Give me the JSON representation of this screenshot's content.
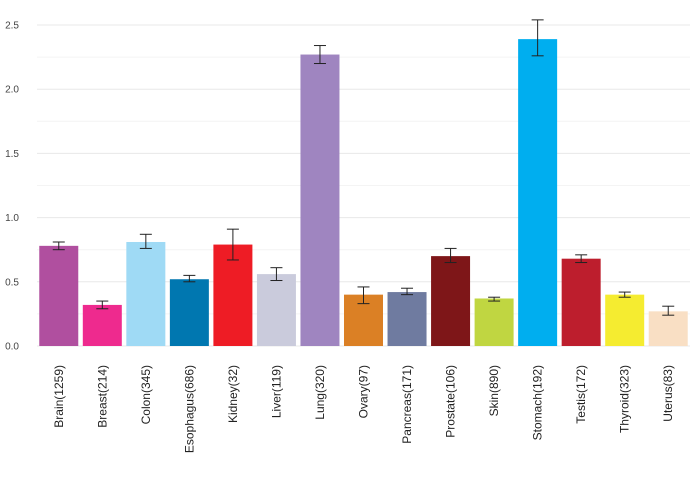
{
  "chart_data": {
    "type": "bar",
    "title": "",
    "xlabel": "",
    "ylabel": "",
    "ylim": [
      0,
      2.6
    ],
    "yticks": [
      "0.0",
      "0.5",
      "1.0",
      "1.5",
      "2.0",
      "2.5"
    ],
    "grid": true,
    "legend": "none",
    "categories": [
      "Brain(1259)",
      "Breast(214)",
      "Colon(345)",
      "Esophagus(686)",
      "Kidney(32)",
      "Liver(119)",
      "Lung(320)",
      "Ovary(97)",
      "Pancreas(171)",
      "Prostate(106)",
      "Skin(890)",
      "Stomach(192)",
      "Testis(172)",
      "Thyroid(323)",
      "Uterus(83)"
    ],
    "values": [
      0.78,
      0.32,
      0.81,
      0.52,
      0.79,
      0.56,
      2.27,
      0.4,
      0.42,
      0.7,
      0.37,
      2.39,
      0.68,
      0.4,
      0.27
    ],
    "error_low": [
      0.75,
      0.29,
      0.76,
      0.5,
      0.67,
      0.51,
      2.2,
      0.33,
      0.4,
      0.65,
      0.35,
      2.26,
      0.65,
      0.38,
      0.24
    ],
    "error_high": [
      0.81,
      0.35,
      0.87,
      0.55,
      0.91,
      0.61,
      2.34,
      0.46,
      0.45,
      0.76,
      0.38,
      2.54,
      0.71,
      0.42,
      0.31
    ],
    "colors": [
      "#b04f9f",
      "#ee2a8e",
      "#9fdaf5",
      "#0077b0",
      "#ee1c25",
      "#cacbdc",
      "#9f85c0",
      "#db8025",
      "#6f7ba0",
      "#7e1618",
      "#c0d641",
      "#00aeef",
      "#bd1e2d",
      "#f5ec30",
      "#f9dfc4"
    ]
  }
}
